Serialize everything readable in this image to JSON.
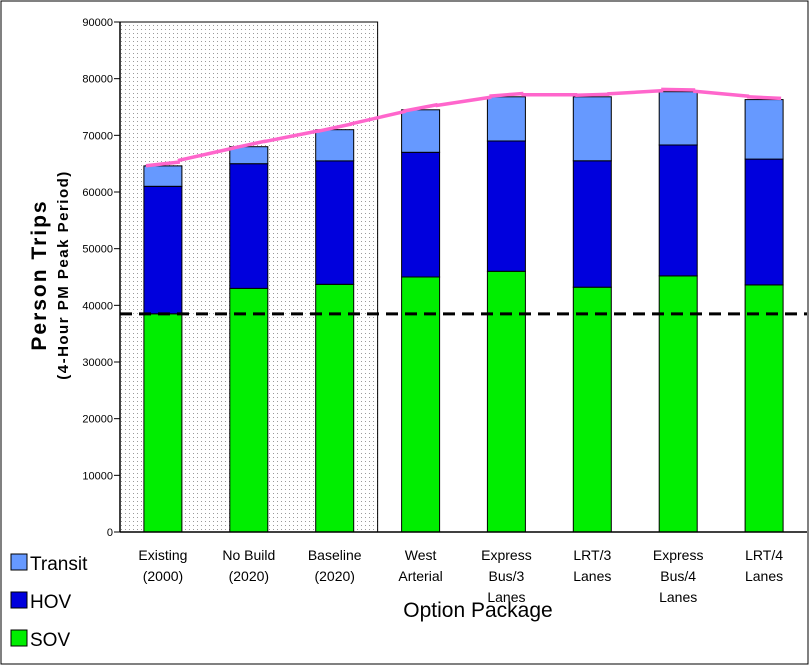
{
  "chart_data": {
    "type": "bar",
    "stacked": true,
    "categories": [
      [
        "Existing",
        "(2000)"
      ],
      [
        "No Build",
        "(2020)"
      ],
      [
        "Baseline",
        "(2020)"
      ],
      [
        "West",
        "Arterial"
      ],
      [
        "Express",
        "Bus/3",
        "Lanes"
      ],
      [
        "LRT/3",
        "Lanes"
      ],
      [
        "Express",
        "Bus/4",
        "Lanes"
      ],
      [
        "LRT/4",
        "Lanes"
      ]
    ],
    "series": [
      {
        "name": "SOV",
        "color": "#00ee00",
        "values": [
          38500,
          43000,
          43700,
          45000,
          46000,
          43200,
          45200,
          43600
        ]
      },
      {
        "name": "HOV",
        "color": "#0000dd",
        "values": [
          22500,
          22000,
          21800,
          22000,
          23000,
          22300,
          23100,
          22200
        ]
      },
      {
        "name": "Transit",
        "color": "#6699ff",
        "values": [
          3600,
          3000,
          5500,
          7500,
          7800,
          11300,
          9400,
          10500
        ]
      }
    ],
    "reference_line": {
      "value": 38500,
      "style": "dashed",
      "color": "#000000"
    },
    "trend_line_color": "#ff66cc",
    "shaded_categories": [
      0,
      1,
      2
    ],
    "ylim": [
      0,
      90000
    ],
    "yticks": [
      "0",
      "10000",
      "20000",
      "30000",
      "40000",
      "50000",
      "60000",
      "70000",
      "80000",
      "90000"
    ],
    "ylabel": "Person Trips",
    "ylabel_sub": "(4-Hour PM Peak Period)",
    "xlabel": "Option Package",
    "legend": [
      "Transit",
      "HOV",
      "SOV"
    ],
    "legend_position": "bottom-left"
  }
}
